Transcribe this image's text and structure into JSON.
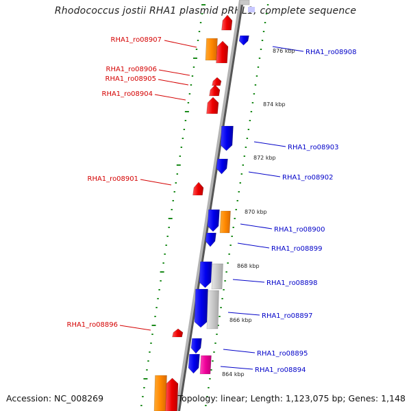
{
  "title": "Rhodococcus jostii RHA1 plasmid pRHL1, complete sequence",
  "footer": {
    "accession": "Accession: NC_008269",
    "summary": "Topology: linear; Length: 1,123,075 bp; Genes: 1,148"
  },
  "colors": {
    "left_strand_label": "#d40000",
    "right_strand_label": "#0000c8",
    "tick_dots": "#1a8a1a",
    "backbone": "#9a9a9a",
    "red_gene": "#ee0000",
    "blue_gene": "#0000ee",
    "orange_gene": "#ff8800",
    "gray_gene": "#c8c8c8",
    "magenta_gene": "#ee0099"
  },
  "scale_labels": [
    "876 kbp",
    "874 kbp",
    "872 kbp",
    "870 kbp",
    "868 kbp",
    "866 kbp",
    "864 kbp"
  ],
  "left_labels": [
    "RHA1_ro08907",
    "RHA1_ro08906",
    "RHA1_ro08905",
    "RHA1_ro08904",
    "RHA1_ro08901",
    "RHA1_ro08896"
  ],
  "right_labels": [
    "RHA1_ro08908",
    "RHA1_ro08903",
    "RHA1_ro08902",
    "RHA1_ro08900",
    "RHA1_ro08899",
    "RHA1_ro08898",
    "RHA1_ro08897",
    "RHA1_ro08895",
    "RHA1_ro08894"
  ]
}
